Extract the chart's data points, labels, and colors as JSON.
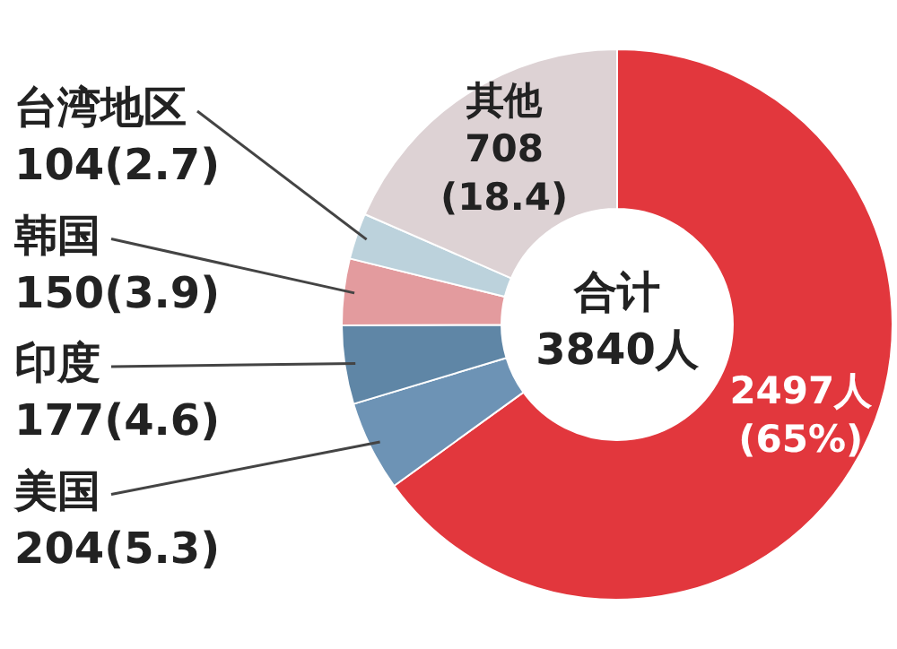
{
  "chart_data": {
    "type": "donut",
    "categories": [
      null,
      "美国",
      "印度",
      "韩国",
      "台湾地区",
      "其他"
    ],
    "values": [
      2497,
      204,
      177,
      150,
      104,
      708
    ],
    "colors": [
      "#e2373d",
      "#6d93b5",
      "#5f86a6",
      "#e39b9e",
      "#bcd2dc",
      "#ddd2d4"
    ],
    "value_labels": [
      "2497人\n(65%)",
      "204(5.3)",
      "177(4.6)",
      "150(3.9)",
      "104(2.7)",
      "708\n(18.4)"
    ],
    "annotations": [
      "合计",
      "3840人"
    ],
    "legend": false
  }
}
